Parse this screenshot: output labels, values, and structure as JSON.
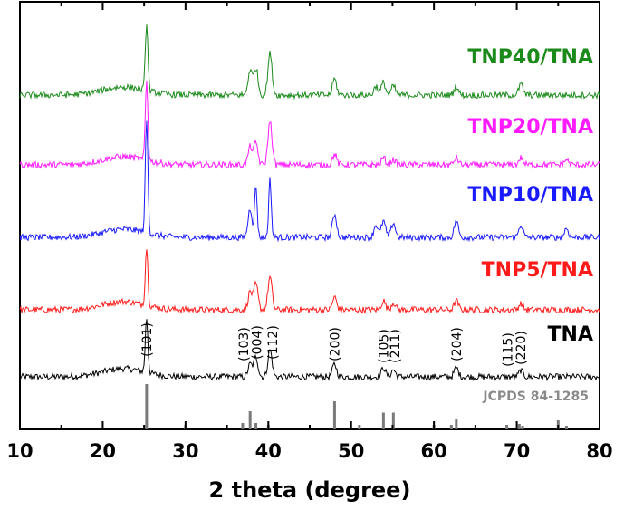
{
  "chart_data": {
    "type": "line",
    "xlabel": "2 theta (degree)",
    "ylabel": "",
    "xlim": [
      10,
      80
    ],
    "x_ticks": [
      "10",
      "20",
      "30",
      "40",
      "50",
      "60",
      "70",
      "80"
    ],
    "grid": false,
    "reference": {
      "name": "JCPDS 84-1285",
      "color": "#7a7a7a",
      "lines": [
        {
          "x": 25.3,
          "intensity": 100
        },
        {
          "x": 30.0,
          "intensity": 10
        },
        {
          "x": 36.9,
          "intensity": 14
        },
        {
          "x": 37.8,
          "intensity": 40
        },
        {
          "x": 38.5,
          "intensity": 14
        },
        {
          "x": 40.0,
          "intensity": 10
        },
        {
          "x": 48.0,
          "intensity": 62
        },
        {
          "x": 51.0,
          "intensity": 10
        },
        {
          "x": 53.9,
          "intensity": 37
        },
        {
          "x": 55.1,
          "intensity": 37
        },
        {
          "x": 60.0,
          "intensity": 10
        },
        {
          "x": 62.1,
          "intensity": 10
        },
        {
          "x": 62.7,
          "intensity": 24
        },
        {
          "x": 68.8,
          "intensity": 10
        },
        {
          "x": 70.3,
          "intensity": 12
        },
        {
          "x": 70.7,
          "intensity": 8
        },
        {
          "x": 75.0,
          "intensity": 20
        },
        {
          "x": 76.0,
          "intensity": 8
        }
      ]
    },
    "annotations": [
      {
        "label": "(101)",
        "x": 25.3
      },
      {
        "label": "(103)",
        "x": 37.0
      },
      {
        "label": "(004)",
        "x": 38.6
      },
      {
        "label": "(112)",
        "x": 40.5
      },
      {
        "label": "(200)",
        "x": 48.0
      },
      {
        "label": "(105)",
        "x": 53.9
      },
      {
        "label": "(211)",
        "x": 55.3
      },
      {
        "label": "(204)",
        "x": 62.7
      },
      {
        "label": "(115)",
        "x": 68.9
      },
      {
        "label": "(220)",
        "x": 70.5
      }
    ],
    "series": [
      {
        "name": "TNA",
        "color": "#000000",
        "peaks": [
          {
            "x": 25.3,
            "h": 60
          },
          {
            "x": 37.8,
            "h": 14
          },
          {
            "x": 38.5,
            "h": 22
          },
          {
            "x": 40.2,
            "h": 30
          },
          {
            "x": 48.0,
            "h": 14
          },
          {
            "x": 53.9,
            "h": 10
          },
          {
            "x": 55.1,
            "h": 8
          },
          {
            "x": 62.7,
            "h": 10
          },
          {
            "x": 70.5,
            "h": 7
          }
        ]
      },
      {
        "name": "TNP5/TNA",
        "color": "#ff1a1a",
        "peaks": [
          {
            "x": 25.3,
            "h": 64
          },
          {
            "x": 37.8,
            "h": 20
          },
          {
            "x": 38.5,
            "h": 28
          },
          {
            "x": 40.2,
            "h": 36
          },
          {
            "x": 48.0,
            "h": 14
          },
          {
            "x": 53.9,
            "h": 10
          },
          {
            "x": 55.1,
            "h": 8
          },
          {
            "x": 62.7,
            "h": 10
          },
          {
            "x": 70.5,
            "h": 7
          }
        ]
      },
      {
        "name": "TNP10/TNA",
        "color": "#1a1aff",
        "peaks": [
          {
            "x": 25.3,
            "h": 125
          },
          {
            "x": 37.8,
            "h": 32
          },
          {
            "x": 38.5,
            "h": 56
          },
          {
            "x": 40.2,
            "h": 64
          },
          {
            "x": 48.0,
            "h": 26
          },
          {
            "x": 53.0,
            "h": 14
          },
          {
            "x": 53.9,
            "h": 18
          },
          {
            "x": 55.1,
            "h": 16
          },
          {
            "x": 62.7,
            "h": 18
          },
          {
            "x": 70.5,
            "h": 14
          },
          {
            "x": 76.0,
            "h": 10
          }
        ]
      },
      {
        "name": "TNP20/TNA",
        "color": "#ff1aff",
        "peaks": [
          {
            "x": 25.3,
            "h": 88
          },
          {
            "x": 37.8,
            "h": 20
          },
          {
            "x": 38.5,
            "h": 24
          },
          {
            "x": 40.2,
            "h": 48
          },
          {
            "x": 48.0,
            "h": 12
          },
          {
            "x": 53.9,
            "h": 8
          },
          {
            "x": 55.1,
            "h": 6
          },
          {
            "x": 62.7,
            "h": 8
          },
          {
            "x": 70.5,
            "h": 8
          },
          {
            "x": 76.0,
            "h": 6
          }
        ]
      },
      {
        "name": "TNP40/TNA",
        "color": "#1a8a1a",
        "peaks": [
          {
            "x": 25.3,
            "h": 75
          },
          {
            "x": 37.8,
            "h": 28
          },
          {
            "x": 38.5,
            "h": 30
          },
          {
            "x": 40.2,
            "h": 46
          },
          {
            "x": 48.0,
            "h": 18
          },
          {
            "x": 53.0,
            "h": 10
          },
          {
            "x": 53.9,
            "h": 14
          },
          {
            "x": 55.1,
            "h": 10
          },
          {
            "x": 62.7,
            "h": 10
          },
          {
            "x": 70.5,
            "h": 12
          }
        ]
      }
    ]
  }
}
